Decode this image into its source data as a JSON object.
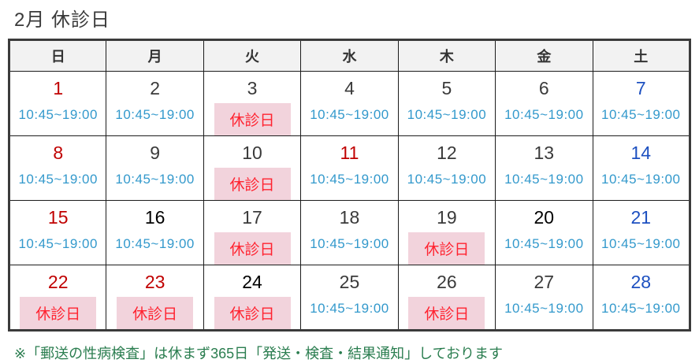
{
  "title": "2月 休診日",
  "weekday_headers": [
    "日",
    "月",
    "火",
    "水",
    "木",
    "金",
    "土"
  ],
  "open_hours": "10:45~19:00",
  "closed_label": "休診日",
  "footnote": "※「郵送の性病検査」は休まず365日「発送・検査・結果通知」しております",
  "colors": {
    "red": "#c00000",
    "blue": "#1d50c0",
    "black": "#000000",
    "gray": "#3a3a3a",
    "hours_blue": "#3399cc",
    "closed_bg": "#f2d3dc",
    "closed_text": "#ff2330",
    "header_bg": "#f2f2f2",
    "footnote_green": "#2a7d4f",
    "border_dark": "#3b3b3b"
  },
  "weeks": [
    [
      {
        "day": "1",
        "color": "red",
        "status": "open"
      },
      {
        "day": "2",
        "color": "gray",
        "status": "open"
      },
      {
        "day": "3",
        "color": "gray",
        "status": "closed"
      },
      {
        "day": "4",
        "color": "gray",
        "status": "open"
      },
      {
        "day": "5",
        "color": "gray",
        "status": "open"
      },
      {
        "day": "6",
        "color": "gray",
        "status": "open"
      },
      {
        "day": "7",
        "color": "blue",
        "status": "open"
      }
    ],
    [
      {
        "day": "8",
        "color": "red",
        "status": "open"
      },
      {
        "day": "9",
        "color": "gray",
        "status": "open"
      },
      {
        "day": "10",
        "color": "gray",
        "status": "closed"
      },
      {
        "day": "11",
        "color": "red",
        "status": "open"
      },
      {
        "day": "12",
        "color": "gray",
        "status": "open"
      },
      {
        "day": "13",
        "color": "gray",
        "status": "open"
      },
      {
        "day": "14",
        "color": "blue",
        "status": "open"
      }
    ],
    [
      {
        "day": "15",
        "color": "red",
        "status": "open"
      },
      {
        "day": "16",
        "color": "black",
        "status": "open"
      },
      {
        "day": "17",
        "color": "gray",
        "status": "closed"
      },
      {
        "day": "18",
        "color": "gray",
        "status": "open"
      },
      {
        "day": "19",
        "color": "gray",
        "status": "closed"
      },
      {
        "day": "20",
        "color": "black",
        "status": "open"
      },
      {
        "day": "21",
        "color": "blue",
        "status": "open"
      }
    ],
    [
      {
        "day": "22",
        "color": "red",
        "status": "closed"
      },
      {
        "day": "23",
        "color": "red",
        "status": "closed"
      },
      {
        "day": "24",
        "color": "black",
        "status": "closed"
      },
      {
        "day": "25",
        "color": "gray",
        "status": "open"
      },
      {
        "day": "26",
        "color": "gray",
        "status": "closed"
      },
      {
        "day": "27",
        "color": "gray",
        "status": "open"
      },
      {
        "day": "28",
        "color": "blue",
        "status": "open"
      }
    ]
  ]
}
